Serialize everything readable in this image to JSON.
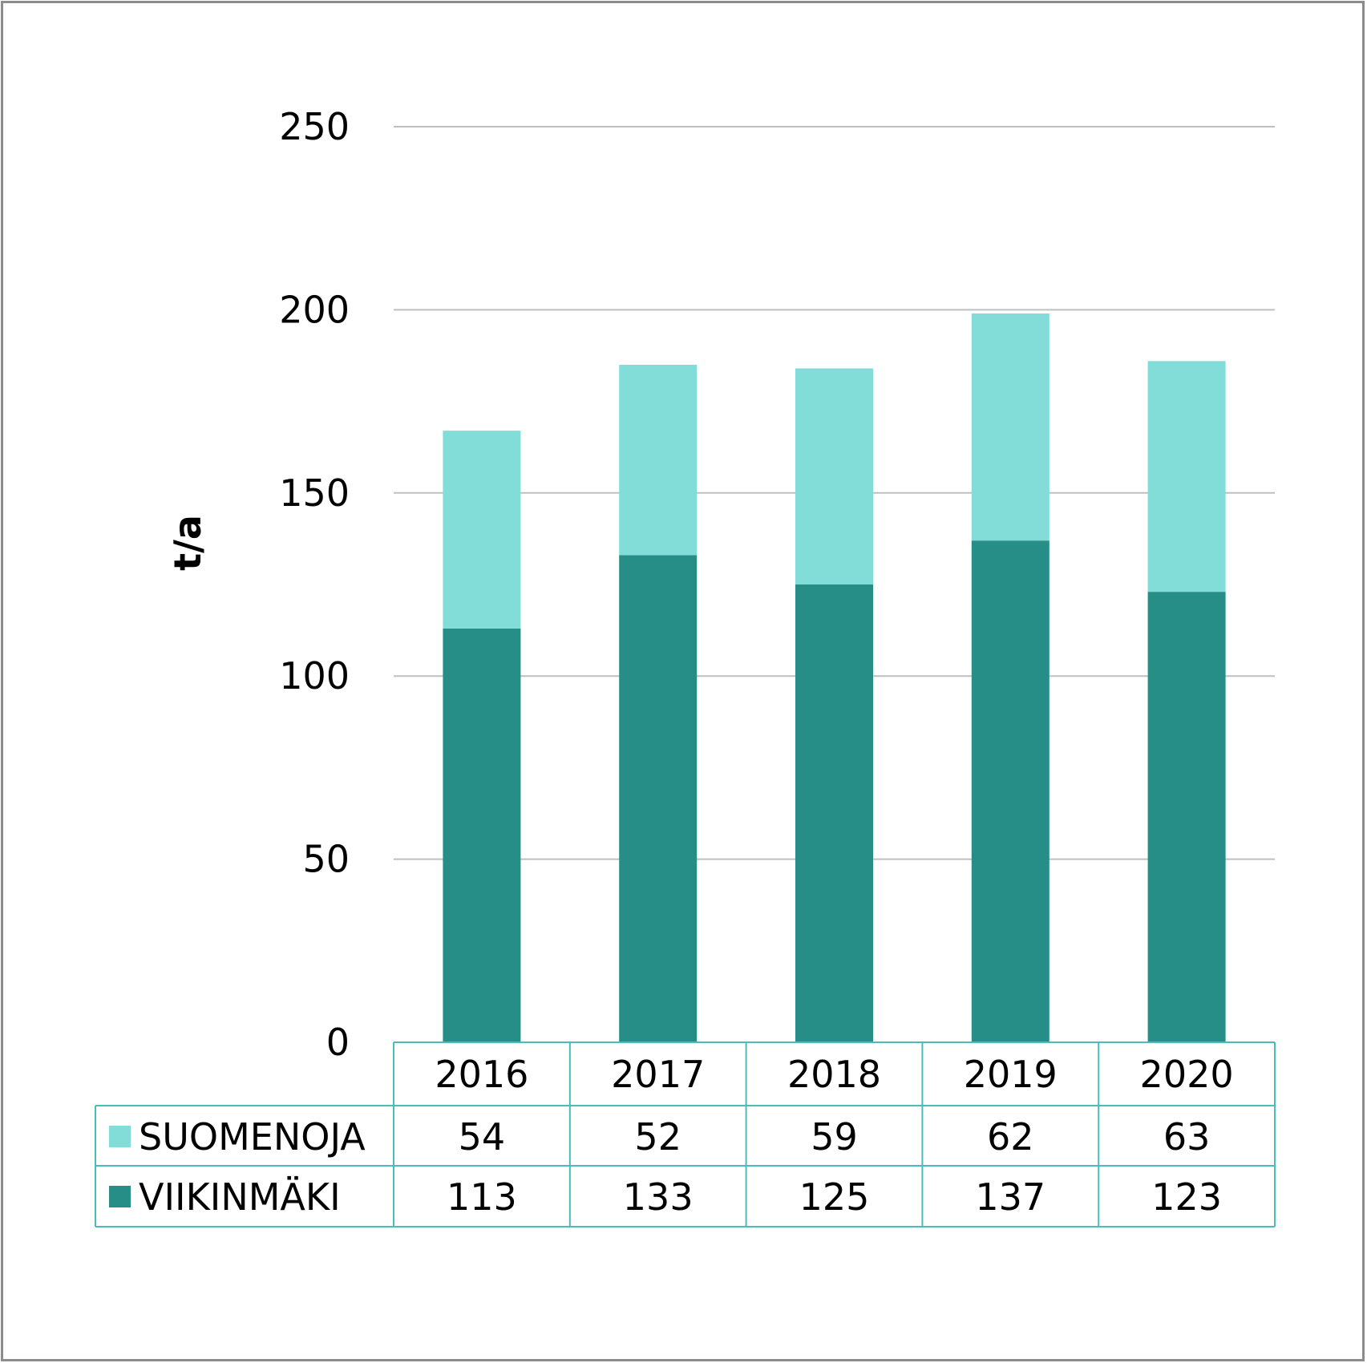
{
  "chart_data": {
    "type": "bar",
    "stacked": true,
    "ylabel": "t/a",
    "ylim": [
      0,
      250
    ],
    "yticks": [
      0,
      50,
      100,
      150,
      200,
      250
    ],
    "grid": true,
    "legend": "data-table-left",
    "categories": [
      "2016",
      "2017",
      "2018",
      "2019",
      "2020"
    ],
    "series": [
      {
        "name": "VIIKINMÄKI",
        "color": "#268e87",
        "values": [
          113,
          133,
          125,
          137,
          123
        ]
      },
      {
        "name": "SUOMENOJA",
        "color": "#82ddd9",
        "values": [
          54,
          52,
          59,
          62,
          63
        ]
      }
    ],
    "table_rows": [
      "SUOMENOJA",
      "VIIKINMÄKI"
    ],
    "colors": {
      "grid": "#bfbfbf",
      "table_border": "#4bbbbb",
      "frame": "#8c8c8c"
    }
  }
}
